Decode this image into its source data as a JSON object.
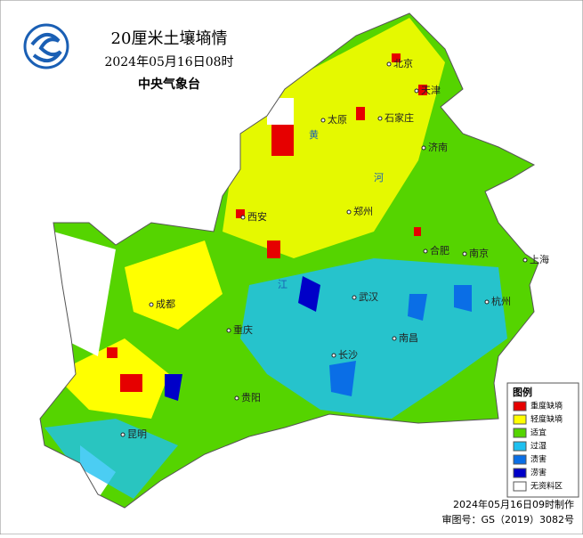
{
  "header": {
    "title": "20厘米土壤墒情",
    "time": "2024年05月16日08时",
    "agency": "中央气象台"
  },
  "cities": [
    "北京",
    "天津",
    "太原",
    "石家庄",
    "济南",
    "郑州",
    "西安",
    "合肥",
    "南京",
    "上海",
    "成都",
    "武汉",
    "杭州",
    "重庆",
    "南昌",
    "长沙",
    "贵阳",
    "昆明"
  ],
  "river_labels": [
    "黄",
    "河",
    "江"
  ],
  "legend": {
    "title": "图例",
    "items": [
      {
        "label": "重度缺墒",
        "color": "#e60000"
      },
      {
        "label": "轻度缺墒",
        "color": "#ffff00"
      },
      {
        "label": "适宜",
        "color": "#55d400"
      },
      {
        "label": "过湿",
        "color": "#1ec0f0"
      },
      {
        "label": "渍害",
        "color": "#0a6ee6"
      },
      {
        "label": "涝害",
        "color": "#0000c8"
      },
      {
        "label": "无资料区",
        "color": "#ffffff"
      }
    ]
  },
  "footer": {
    "made": "2024年05月16日09时制作",
    "approval": "审图号：GS（2019）3082号"
  }
}
